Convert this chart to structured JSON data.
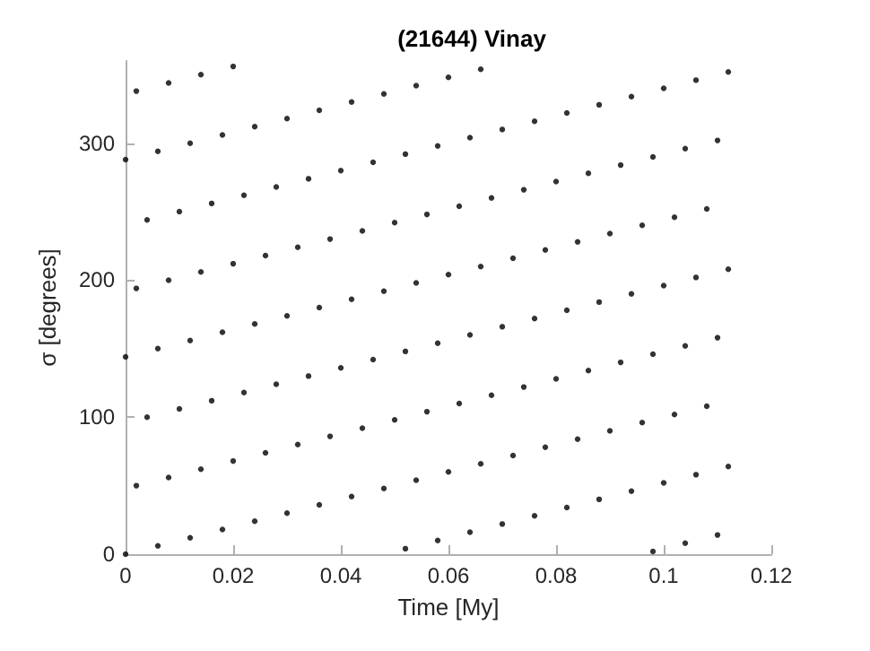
{
  "chart_data": {
    "type": "scatter",
    "title": "(21644) Vinay",
    "xlabel": "Time [My]",
    "ylabel": "σ [degrees]",
    "xlim": [
      0,
      0.12
    ],
    "ylim": [
      0,
      360
    ],
    "xticks": [
      0,
      0.02,
      0.04,
      0.06,
      0.08,
      0.1,
      0.12
    ],
    "yticks": [
      0,
      100,
      200,
      300
    ],
    "grid": false,
    "marker": "circle",
    "series": [
      {
        "color": "#000000",
        "x": [
          0,
          0,
          0,
          0.002,
          0.002,
          0.002,
          0.004,
          0.004,
          0.006,
          0.006,
          0.006,
          0.008,
          0.008,
          0.008,
          0.01,
          0.01,
          0.012,
          0.012,
          0.012,
          0.014,
          0.014,
          0.014,
          0.016,
          0.016,
          0.018,
          0.018,
          0.018,
          0.02,
          0.02,
          0.02,
          0.022,
          0.022,
          0.024,
          0.024,
          0.024,
          0.026,
          0.026,
          0.028,
          0.028,
          0.03,
          0.03,
          0.03,
          0.032,
          0.032,
          0.034,
          0.034,
          0.036,
          0.036,
          0.036,
          0.038,
          0.038,
          0.04,
          0.04,
          0.042,
          0.042,
          0.042,
          0.044,
          0.044,
          0.046,
          0.046,
          0.048,
          0.048,
          0.048,
          0.05,
          0.05,
          0.052,
          0.052,
          0.052,
          0.054,
          0.054,
          0.054,
          0.056,
          0.056,
          0.058,
          0.058,
          0.058,
          0.06,
          0.06,
          0.06,
          0.062,
          0.062,
          0.064,
          0.064,
          0.064,
          0.066,
          0.066,
          0.066,
          0.068,
          0.068,
          0.07,
          0.07,
          0.07,
          0.072,
          0.072,
          0.074,
          0.074,
          0.076,
          0.076,
          0.076,
          0.078,
          0.078,
          0.08,
          0.08,
          0.082,
          0.082,
          0.082,
          0.084,
          0.084,
          0.086,
          0.086,
          0.088,
          0.088,
          0.088,
          0.09,
          0.09,
          0.092,
          0.092,
          0.094,
          0.094,
          0.094,
          0.096,
          0.096,
          0.098,
          0.098,
          0.098,
          0.1,
          0.1,
          0.1,
          0.102,
          0.102,
          0.104,
          0.104,
          0.104,
          0.106,
          0.106,
          0.106,
          0.108,
          0.108,
          0.11,
          0.11,
          0.11,
          0.112,
          0.112,
          0.112
        ],
        "values": [
          0,
          144,
          288,
          50,
          194,
          338,
          100,
          244,
          6,
          150,
          294,
          56,
          200,
          344,
          106,
          250,
          12,
          156,
          300,
          62,
          206,
          350,
          112,
          256,
          18,
          162,
          306,
          68,
          212,
          356,
          118,
          262,
          24,
          168,
          312,
          74,
          218,
          124,
          268,
          30,
          174,
          318,
          80,
          224,
          130,
          274,
          36,
          180,
          324,
          86,
          230,
          136,
          280,
          42,
          186,
          330,
          92,
          236,
          142,
          286,
          48,
          192,
          336,
          98,
          242,
          4,
          148,
          292,
          54,
          198,
          342,
          104,
          248,
          10,
          154,
          298,
          60,
          204,
          348,
          110,
          254,
          16,
          160,
          304,
          66,
          210,
          354,
          116,
          260,
          22,
          166,
          310,
          72,
          216,
          122,
          266,
          28,
          172,
          316,
          78,
          222,
          128,
          272,
          34,
          178,
          322,
          84,
          228,
          134,
          278,
          40,
          184,
          328,
          90,
          234,
          140,
          284,
          46,
          190,
          334,
          96,
          240,
          2,
          146,
          290,
          52,
          196,
          340,
          102,
          246,
          8,
          152,
          296,
          58,
          202,
          346,
          108,
          252,
          14,
          158,
          302,
          64,
          208,
          352
        ]
      }
    ]
  }
}
